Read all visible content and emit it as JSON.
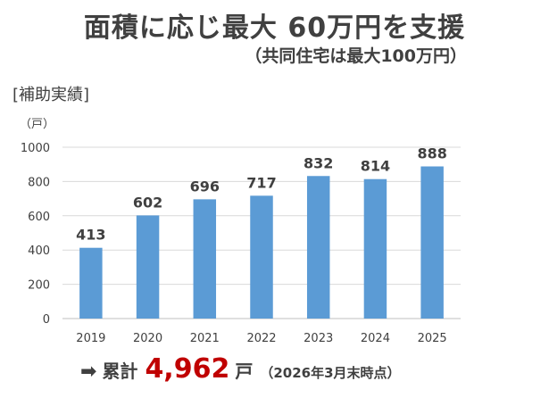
{
  "title": "面積に応じ最大 60万円を支援",
  "subtitle": "（共同住宅は最大100万円）",
  "section_label": "[補助実績]",
  "unit_label": "（戸）",
  "colors": {
    "bar": "#5b9bd5",
    "total": "#c00000",
    "grid": "#d9d9d9"
  },
  "chart_data": {
    "type": "bar",
    "categories": [
      "2019",
      "2020",
      "2021",
      "2022",
      "2023",
      "2024",
      "2025"
    ],
    "values": [
      413,
      602,
      696,
      717,
      832,
      814,
      888
    ],
    "title": "",
    "xlabel": "",
    "ylabel": "（戸）",
    "ylim": [
      0,
      1000
    ],
    "yticks": [
      0,
      200,
      400,
      600,
      800,
      1000
    ],
    "grid": true,
    "data_labels": true
  },
  "footer": {
    "arrow": "➡",
    "label": "累計",
    "total": "4,962",
    "total_unit": "戸",
    "note": "（2026年3月末時点）"
  }
}
